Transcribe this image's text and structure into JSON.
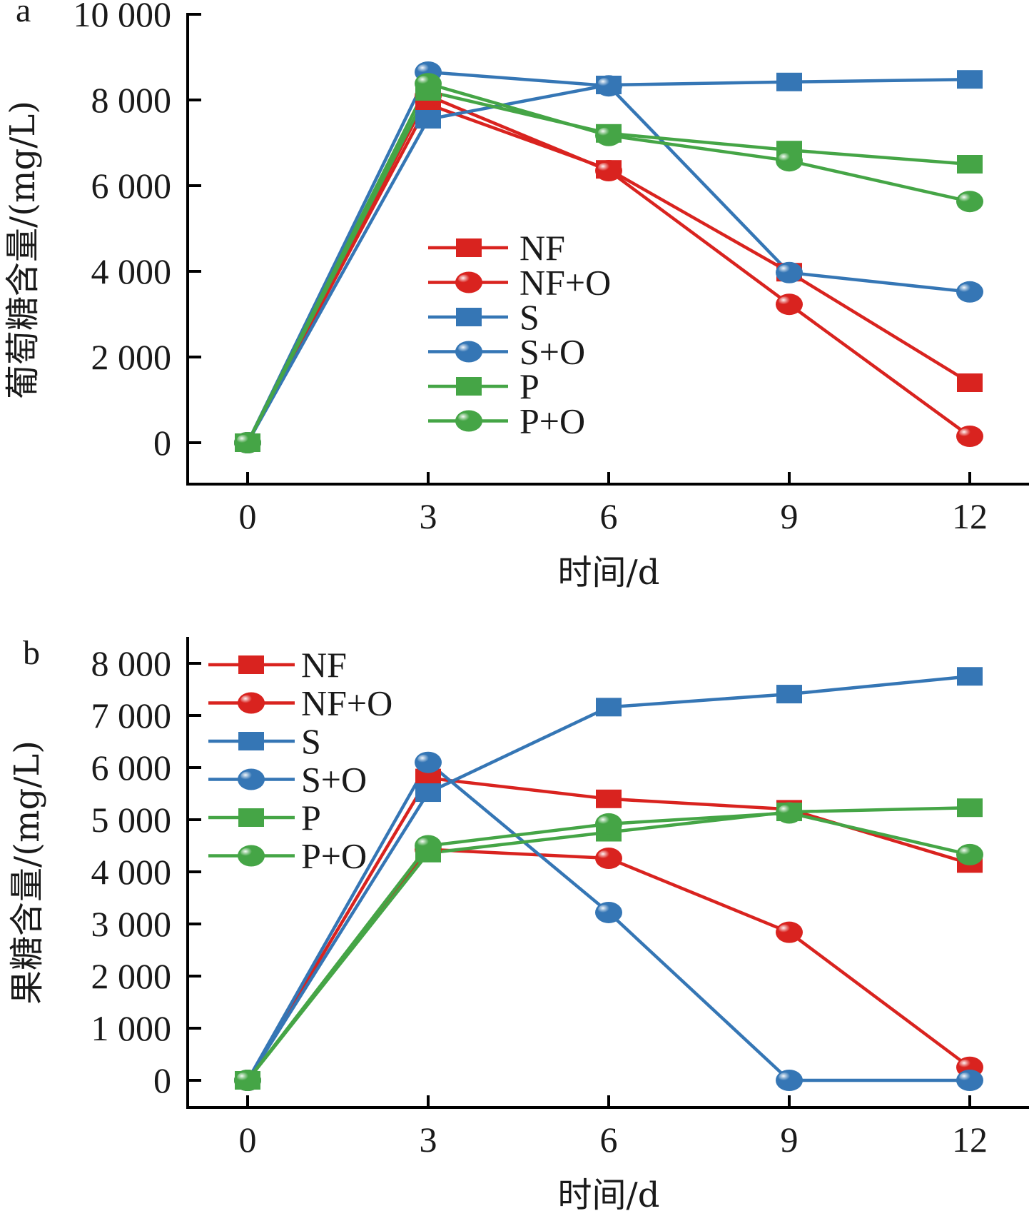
{
  "chart_data": [
    {
      "panel_label": "a",
      "type": "line",
      "title": "",
      "xlabel": "时间/d",
      "ylabel": "葡萄糖含量/(mg/L)",
      "x": [
        0,
        3,
        6,
        9,
        12
      ],
      "x_tick_labels": [
        "0",
        "3",
        "6",
        "9",
        "12"
      ],
      "y_ticks": [
        0,
        2000,
        4000,
        6000,
        8000,
        10000
      ],
      "y_tick_labels": [
        "0",
        "2 000",
        "4 000",
        "6 000",
        "8 000",
        "10 000"
      ],
      "xlim": [
        -0.98,
        14
      ],
      "ylim": [
        -1000,
        10000
      ],
      "grid": false,
      "legend_position": "center",
      "series": [
        {
          "name": "NF",
          "color": "#d9231f",
          "marker": "square",
          "values": [
            0,
            7900,
            6380,
            3980,
            1400
          ]
        },
        {
          "name": "NF+O",
          "color": "#d9231f",
          "marker": "circle",
          "values": [
            0,
            8100,
            6350,
            3230,
            150
          ]
        },
        {
          "name": "S",
          "color": "#3576b5",
          "marker": "square",
          "values": [
            0,
            7550,
            8350,
            8420,
            8480
          ]
        },
        {
          "name": "S+O",
          "color": "#3576b5",
          "marker": "circle",
          "values": [
            0,
            8650,
            8330,
            3970,
            3520
          ]
        },
        {
          "name": "P",
          "color": "#45a546",
          "marker": "square",
          "values": [
            0,
            8200,
            7220,
            6830,
            6500
          ]
        },
        {
          "name": "P+O",
          "color": "#45a546",
          "marker": "circle",
          "values": [
            0,
            8380,
            7170,
            6580,
            5630
          ]
        }
      ]
    },
    {
      "panel_label": "b",
      "type": "line",
      "title": "",
      "xlabel": "时间/d",
      "ylabel": "果糖含量/(mg/L)",
      "x": [
        0,
        3,
        6,
        9,
        12
      ],
      "x_tick_labels": [
        "0",
        "3",
        "6",
        "9",
        "12"
      ],
      "y_ticks": [
        0,
        1000,
        2000,
        3000,
        4000,
        5000,
        6000,
        7000,
        8000
      ],
      "y_tick_labels": [
        "0",
        "1 000",
        "2 000",
        "3 000",
        "4 000",
        "5 000",
        "6 000",
        "7 000",
        "8 000"
      ],
      "xlim": [
        -0.98,
        14
      ],
      "ylim": [
        -500,
        8500
      ],
      "grid": false,
      "legend_position": "top-left",
      "series": [
        {
          "name": "NF",
          "color": "#d9231f",
          "marker": "square",
          "values": [
            0,
            5800,
            5400,
            5200,
            4160
          ]
        },
        {
          "name": "NF+O",
          "color": "#d9231f",
          "marker": "circle",
          "values": [
            0,
            4430,
            4260,
            2840,
            250
          ]
        },
        {
          "name": "S",
          "color": "#3576b5",
          "marker": "square",
          "values": [
            0,
            5520,
            7160,
            7410,
            7750
          ]
        },
        {
          "name": "S+O",
          "color": "#3576b5",
          "marker": "circle",
          "values": [
            0,
            6100,
            3220,
            0,
            0
          ]
        },
        {
          "name": "P",
          "color": "#45a546",
          "marker": "square",
          "values": [
            0,
            4360,
            4760,
            5150,
            5230
          ]
        },
        {
          "name": "P+O",
          "color": "#45a546",
          "marker": "circle",
          "values": [
            0,
            4500,
            4920,
            5130,
            4330
          ]
        }
      ]
    }
  ]
}
